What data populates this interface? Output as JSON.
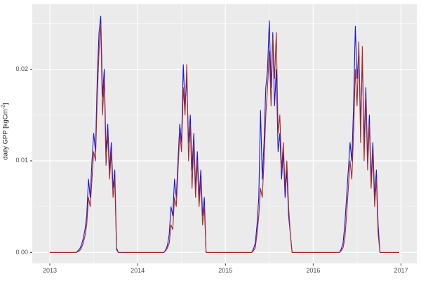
{
  "figure": {
    "background": "#FFFFFF",
    "panel_fill": "#EBEBEB",
    "grid_major_color": "#FFFFFF",
    "grid_minor_color": "#FFFFFF",
    "grid_minor_opacity": 0.55,
    "tick_mark_color": "#333333",
    "tick_label_color": "#4D4D4D",
    "axis_title_color": "#1A1A1A"
  },
  "chart_data": {
    "type": "line",
    "title": "",
    "xlabel": "",
    "ylabel": "daily GPP [kgCm-2]",
    "ylabel_parts": {
      "prefix": "daily GPP [kgCm",
      "superscript": "-2",
      "suffix": "]"
    },
    "grid": true,
    "legend_position": "none",
    "xlim": [
      2012.8,
      2017.18
    ],
    "ylim": [
      -0.0012,
      0.0271
    ],
    "x_ticks": [
      2013,
      2014,
      2015,
      2016,
      2017
    ],
    "x_tick_labels": [
      "2013",
      "2014",
      "2015",
      "2016",
      "2017"
    ],
    "x_minor": [
      2013.5,
      2014.5,
      2015.5,
      2016.5
    ],
    "y_ticks": [
      0.0,
      0.01,
      0.02
    ],
    "y_tick_labels": [
      "0.00",
      "0.01",
      "0.02"
    ],
    "y_minor": [
      0.005,
      0.015,
      0.025
    ],
    "x_start": 2013.0,
    "x_step": 0.02,
    "series": [
      {
        "name": "modeled-gpp-blue",
        "color": "#1414E0",
        "values": [
          0,
          0,
          0,
          0,
          0,
          0,
          0,
          0,
          0,
          0,
          0,
          0,
          0,
          0,
          0,
          0,
          0.0002,
          0.0004,
          0.0008,
          0.0015,
          0.0025,
          0.004,
          0.008,
          0.006,
          0.01,
          0.013,
          0.011,
          0.019,
          0.024,
          0.0258,
          0.017,
          0.02,
          0.011,
          0.014,
          0.009,
          0.012,
          0.007,
          0.009,
          0.0005,
          0,
          0,
          0,
          0,
          0,
          0,
          0,
          0,
          0,
          0,
          0,
          0,
          0,
          0,
          0,
          0,
          0,
          0,
          0,
          0,
          0,
          0,
          0,
          0,
          0,
          0,
          0,
          0.0003,
          0.0008,
          0.002,
          0.005,
          0.004,
          0.008,
          0.006,
          0.01,
          0.014,
          0.012,
          0.0205,
          0.016,
          0.019,
          0.012,
          0.015,
          0.009,
          0.013,
          0.007,
          0.011,
          0.006,
          0.009,
          0.004,
          0.006,
          0,
          0,
          0,
          0,
          0,
          0,
          0,
          0,
          0,
          0,
          0,
          0,
          0,
          0,
          0,
          0,
          0,
          0,
          0,
          0,
          0,
          0,
          0,
          0,
          0,
          0,
          0,
          0.0004,
          0.001,
          0.003,
          0.006,
          0.0155,
          0.008,
          0.012,
          0.018,
          0.02,
          0.0253,
          0.018,
          0.024,
          0.016,
          0.02,
          0.011,
          0.013,
          0.008,
          0.011,
          0.006,
          0.009,
          0.004,
          0.002,
          0,
          0,
          0,
          0,
          0,
          0,
          0,
          0,
          0,
          0,
          0,
          0,
          0,
          0,
          0,
          0,
          0,
          0,
          0,
          0,
          0,
          0,
          0,
          0,
          0,
          0,
          0,
          0,
          0.0004,
          0.001,
          0.003,
          0.006,
          0.009,
          0.012,
          0.01,
          0.016,
          0.0247,
          0.019,
          0.022,
          0.014,
          0.021,
          0.012,
          0.018,
          0.01,
          0.015,
          0.008,
          0.012,
          0.006,
          0.009,
          0.003,
          0,
          0,
          0,
          0,
          0,
          0,
          0,
          0,
          0,
          0,
          0,
          0
        ]
      },
      {
        "name": "observed-gpp-darkred",
        "color": "#A32929",
        "values": [
          0,
          0,
          0,
          0,
          0,
          0,
          0,
          0,
          0,
          0,
          0,
          0,
          0,
          0,
          0,
          0,
          0.0001,
          0.0002,
          0.0005,
          0.001,
          0.0018,
          0.003,
          0.006,
          0.005,
          0.008,
          0.011,
          0.01,
          0.017,
          0.022,
          0.0248,
          0.015,
          0.019,
          0.0095,
          0.013,
          0.008,
          0.011,
          0.006,
          0.008,
          0.0003,
          0,
          0,
          0,
          0,
          0,
          0,
          0,
          0,
          0,
          0,
          0,
          0,
          0,
          0,
          0,
          0,
          0,
          0,
          0,
          0,
          0,
          0,
          0,
          0,
          0,
          0,
          0,
          0.0002,
          0.0005,
          0.001,
          0.003,
          0.0025,
          0.006,
          0.005,
          0.009,
          0.013,
          0.011,
          0.018,
          0.015,
          0.0205,
          0.01,
          0.014,
          0.007,
          0.012,
          0.006,
          0.01,
          0.005,
          0.008,
          0.003,
          0.005,
          0,
          0,
          0,
          0,
          0,
          0,
          0,
          0,
          0,
          0,
          0,
          0,
          0,
          0,
          0,
          0,
          0,
          0,
          0,
          0,
          0,
          0,
          0,
          0,
          0,
          0,
          0,
          0.0002,
          0.0005,
          0.002,
          0.004,
          0.007,
          0.006,
          0.01,
          0.015,
          0.018,
          0.022,
          0.016,
          0.0235,
          0.019,
          0.024,
          0.013,
          0.015,
          0.009,
          0.012,
          0.007,
          0.01,
          0.005,
          0.002,
          0,
          0,
          0,
          0,
          0,
          0,
          0,
          0,
          0,
          0,
          0,
          0,
          0,
          0,
          0,
          0,
          0,
          0,
          0,
          0,
          0,
          0,
          0,
          0,
          0,
          0,
          0,
          0,
          0.0002,
          0.0005,
          0.0015,
          0.004,
          0.007,
          0.01,
          0.008,
          0.013,
          0.02,
          0.016,
          0.023,
          0.012,
          0.0225,
          0.01,
          0.017,
          0.009,
          0.014,
          0.007,
          0.011,
          0.005,
          0.008,
          0.002,
          0,
          0,
          0,
          0,
          0,
          0,
          0,
          0,
          0,
          0,
          0,
          0
        ]
      }
    ]
  }
}
